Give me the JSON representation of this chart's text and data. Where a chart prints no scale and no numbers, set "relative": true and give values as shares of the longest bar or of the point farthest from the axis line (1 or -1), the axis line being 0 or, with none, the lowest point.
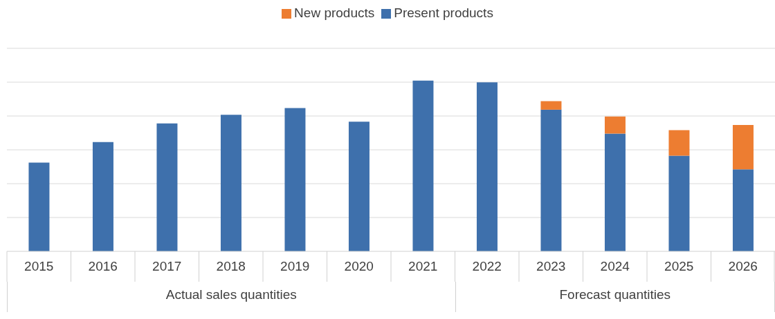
{
  "chart_data": {
    "type": "bar",
    "stacked": true,
    "relative": true,
    "grid": "y",
    "legend": "top",
    "categories": [
      "2015",
      "2016",
      "2017",
      "2018",
      "2019",
      "2020",
      "2021",
      "2022",
      "2023",
      "2024",
      "2025",
      "2026"
    ],
    "series": [
      {
        "name": "Present products",
        "color": "#3e70ac",
        "values": [
          0.52,
          0.64,
          0.75,
          0.8,
          0.84,
          0.76,
          1,
          0.99,
          0.83,
          0.69,
          0.56,
          0.48
        ]
      },
      {
        "name": "New products",
        "color": "#ed7d31",
        "values": [
          null,
          null,
          null,
          null,
          null,
          null,
          null,
          null,
          0.05,
          0.1,
          0.15,
          0.26
        ]
      }
    ],
    "annotations": [
      "Actual sales quantities",
      "Forecast quantities"
    ]
  }
}
